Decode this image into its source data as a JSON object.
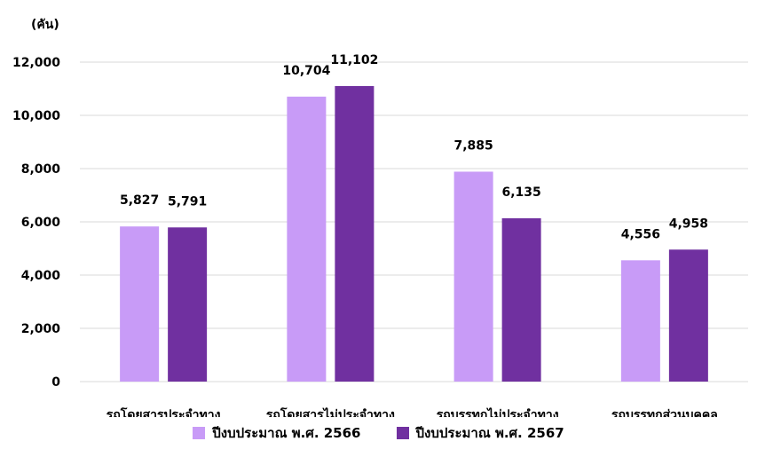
{
  "chart_data": {
    "type": "bar",
    "unit_label": "(คัน)",
    "categories": [
      "รถโดยสารประจำทาง",
      "รถโดยสารไม่ประจำทาง",
      "รถบรรทุกไม่ประจำทาง",
      "รถบรรทุกส่วนบุคคล"
    ],
    "series": [
      {
        "name": "ปีงบประมาณ พ.ศ. 2566",
        "values": [
          5827,
          10704,
          7885,
          4556
        ],
        "labels": [
          "5,827",
          "10,704",
          "7,885",
          "4,556"
        ],
        "color": "#C89BF7"
      },
      {
        "name": "ปีงบประมาณ พ.ศ. 2567",
        "values": [
          5791,
          11102,
          6135,
          4958
        ],
        "labels": [
          "5,791",
          "11,102",
          "6,135",
          "4,958"
        ],
        "color": "#7030A0"
      }
    ],
    "yticks": [
      "0",
      "2,000",
      "4,000",
      "6,000",
      "8,000",
      "10,000",
      "12,000"
    ],
    "ylim": [
      0,
      12000
    ],
    "grid": true,
    "legend_position": "bottom"
  }
}
